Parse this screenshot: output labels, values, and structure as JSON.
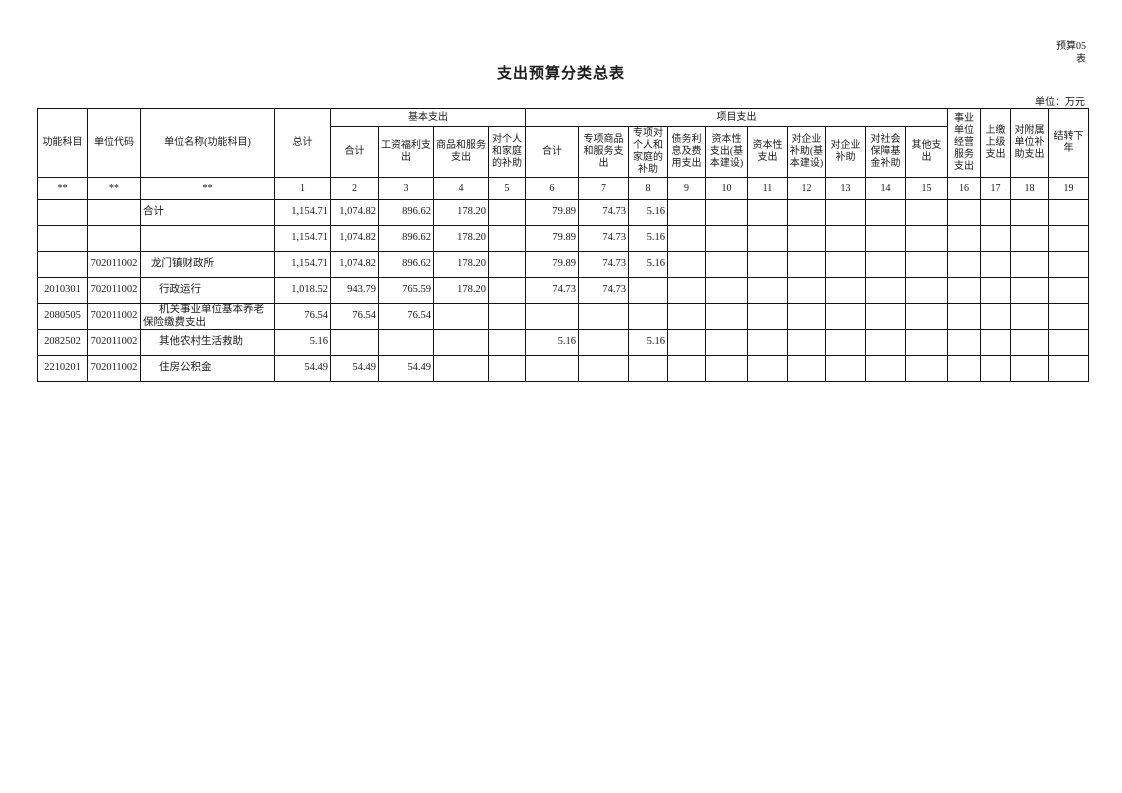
{
  "page": {
    "form_code": "预算05\n表",
    "title": "支出预算分类总表",
    "unit_note": "单位：万元"
  },
  "table": {
    "top_headers": [
      "功能科目",
      "单位代码",
      "单位名称(功能科目)",
      "总计",
      "基本支出",
      "项目支出",
      "事业单位经营服务支出",
      "上缴上级支出",
      "对附属单位补助支出",
      "结转下年"
    ],
    "sub_headers": [
      "合计",
      "工资福利支出",
      "商品和服务支出",
      "对个人和家庭的补助",
      "合计",
      "专项商品和服务支出",
      "专项对个人和家庭的补助",
      "债务利息及费用支出",
      "资本性支出(基本建设)",
      "资本性支出",
      "对企业补助(基本建设)",
      "对企业补助",
      "对社会保障基金补助",
      "其他支出"
    ],
    "index_row": [
      "**",
      "**",
      "**",
      "1",
      "2",
      "3",
      "4",
      "5",
      "6",
      "7",
      "8",
      "9",
      "10",
      "11",
      "12",
      "13",
      "14",
      "15",
      "16",
      "17",
      "18",
      "19"
    ],
    "rows": [
      {
        "level": 0,
        "cells": [
          "",
          "",
          "合计",
          "1,154.71",
          "1,074.82",
          "896.62",
          "178.20",
          "",
          "79.89",
          "74.73",
          "5.16",
          "",
          "",
          "",
          "",
          "",
          "",
          "",
          "",
          "",
          "",
          ""
        ]
      },
      {
        "level": 0,
        "cells": [
          "",
          "",
          "",
          "1,154.71",
          "1,074.82",
          "896.62",
          "178.20",
          "",
          "79.89",
          "74.73",
          "5.16",
          "",
          "",
          "",
          "",
          "",
          "",
          "",
          "",
          "",
          "",
          ""
        ]
      },
      {
        "level": 1,
        "cells": [
          "",
          "702011002",
          "龙门镇财政所",
          "1,154.71",
          "1,074.82",
          "896.62",
          "178.20",
          "",
          "79.89",
          "74.73",
          "5.16",
          "",
          "",
          "",
          "",
          "",
          "",
          "",
          "",
          "",
          "",
          ""
        ]
      },
      {
        "level": 2,
        "cells": [
          "2010301",
          "702011002",
          "行政运行",
          "1,018.52",
          "943.79",
          "765.59",
          "178.20",
          "",
          "74.73",
          "74.73",
          "",
          "",
          "",
          "",
          "",
          "",
          "",
          "",
          "",
          "",
          "",
          ""
        ]
      },
      {
        "level": 2,
        "cells": [
          "2080505",
          "702011002",
          "机关事业单位基本养老保险缴费支出",
          "76.54",
          "76.54",
          "76.54",
          "",
          "",
          "",
          "",
          "",
          "",
          "",
          "",
          "",
          "",
          "",
          "",
          "",
          "",
          "",
          ""
        ]
      },
      {
        "level": 2,
        "cells": [
          "2082502",
          "702011002",
          "其他农村生活救助",
          "5.16",
          "",
          "",
          "",
          "",
          "5.16",
          "",
          "5.16",
          "",
          "",
          "",
          "",
          "",
          "",
          "",
          "",
          "",
          "",
          ""
        ]
      },
      {
        "level": 2,
        "cells": [
          "2210201",
          "702011002",
          "住房公积金",
          "54.49",
          "54.49",
          "54.49",
          "",
          "",
          "",
          "",
          "",
          "",
          "",
          "",
          "",
          "",
          "",
          "",
          "",
          "",
          "",
          ""
        ]
      }
    ]
  }
}
